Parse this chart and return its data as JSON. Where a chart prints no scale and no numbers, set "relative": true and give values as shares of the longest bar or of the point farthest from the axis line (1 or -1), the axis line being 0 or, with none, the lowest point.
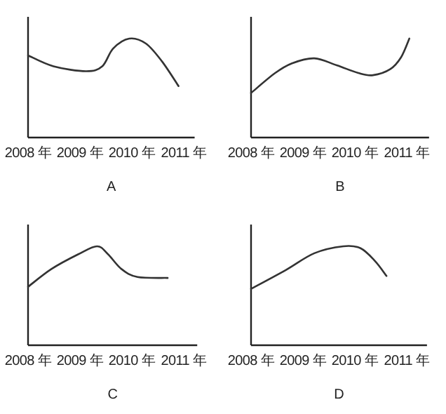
{
  "chart_data": [
    {
      "type": "line",
      "xlabel": "A",
      "relative": true,
      "color": "#333333",
      "xlim": [
        2008,
        2011.21
      ],
      "xticks": [
        {
          "value": 2008,
          "label": "2008 年"
        },
        {
          "value": 2009,
          "label": "2009 年"
        },
        {
          "value": 2010,
          "label": "2010 年"
        },
        {
          "value": 2011,
          "label": "2011 年"
        }
      ],
      "x": [
        2008,
        2008.49,
        2009.12,
        2009.43,
        2009.64,
        2009.95,
        2010.27,
        2010.58,
        2010.9
      ],
      "values": [
        0.83,
        0.72,
        0.67,
        0.72,
        0.9,
        1,
        0.95,
        0.77,
        0.52
      ]
    },
    {
      "type": "line",
      "xlabel": "B",
      "relative": true,
      "color": "#333333",
      "xlim": [
        2008,
        2011.43
      ],
      "xticks": [
        {
          "value": 2008,
          "label": "2008 年"
        },
        {
          "value": 2009,
          "label": "2009 年"
        },
        {
          "value": 2010,
          "label": "2010 年"
        },
        {
          "value": 2011,
          "label": "2011 年"
        }
      ],
      "x": [
        2008,
        2008.46,
        2008.79,
        2009.22,
        2009.65,
        2010.08,
        2010.35,
        2010.68,
        2010.89,
        2011.05
      ],
      "values": [
        0.45,
        0.65,
        0.75,
        0.8,
        0.73,
        0.65,
        0.63,
        0.69,
        0.81,
        1
      ]
    },
    {
      "type": "line",
      "xlabel": "C",
      "relative": true,
      "color": "#333333",
      "xlim": [
        2008,
        2011.26
      ],
      "xticks": [
        {
          "value": 2008,
          "label": "2008 年"
        },
        {
          "value": 2009,
          "label": "2009 年"
        },
        {
          "value": 2010,
          "label": "2010 年"
        },
        {
          "value": 2011,
          "label": "2011 年"
        }
      ],
      "x": [
        2008,
        2008.45,
        2008.97,
        2009.33,
        2009.54,
        2009.8,
        2010.11,
        2010.69
      ],
      "values": [
        0.59,
        0.77,
        0.92,
        1,
        0.92,
        0.77,
        0.69,
        0.68
      ]
    },
    {
      "type": "line",
      "xlabel": "D",
      "relative": true,
      "color": "#333333",
      "xlim": [
        2008,
        2011.39
      ],
      "xticks": [
        {
          "value": 2008,
          "label": "2008 年"
        },
        {
          "value": 2009,
          "label": "2009 年"
        },
        {
          "value": 2010,
          "label": "2010 年"
        },
        {
          "value": 2011,
          "label": "2011 年"
        }
      ],
      "x": [
        2008,
        2008.67,
        2009.22,
        2009.78,
        2010.11,
        2010.39,
        2010.61
      ],
      "values": [
        0.57,
        0.76,
        0.93,
        1,
        0.98,
        0.85,
        0.7
      ]
    }
  ]
}
